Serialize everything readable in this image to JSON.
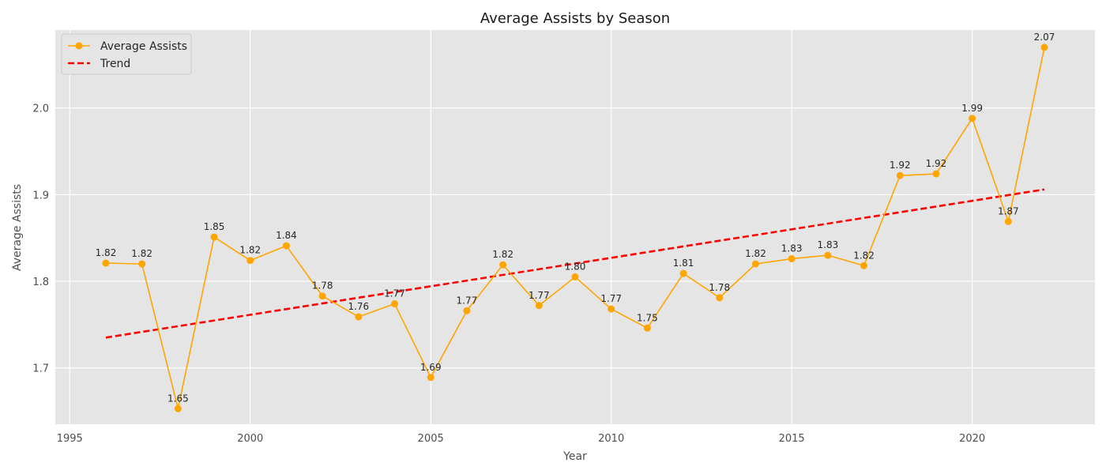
{
  "chart_data": {
    "type": "line",
    "title": "Average Assists by Season",
    "xlabel": "Year",
    "ylabel": "Average Assists",
    "xlim": [
      1994.6,
      2023.4
    ],
    "ylim": [
      1.635,
      2.09
    ],
    "xticks": [
      1995,
      2000,
      2005,
      2010,
      2015,
      2020
    ],
    "yticks": [
      1.7,
      1.8,
      1.9,
      2.0
    ],
    "ytick_labels": [
      "1.7",
      "1.8",
      "1.9",
      "2.0"
    ],
    "grid": true,
    "legend_position": "top-left",
    "series": [
      {
        "name": "Average Assists",
        "color": "#ffa500",
        "marker": "circle",
        "x": [
          1996,
          1997,
          1998,
          1999,
          2000,
          2001,
          2002,
          2003,
          2004,
          2005,
          2006,
          2007,
          2008,
          2009,
          2010,
          2011,
          2012,
          2013,
          2014,
          2015,
          2016,
          2017,
          2018,
          2019,
          2020,
          2021,
          2022
        ],
        "y": [
          1.821,
          1.82,
          1.653,
          1.851,
          1.824,
          1.841,
          1.783,
          1.759,
          1.774,
          1.689,
          1.766,
          1.819,
          1.772,
          1.805,
          1.768,
          1.746,
          1.809,
          1.781,
          1.82,
          1.826,
          1.83,
          1.818,
          1.922,
          1.924,
          1.988,
          1.869,
          2.07
        ],
        "labels": [
          "1.82",
          "1.82",
          "1.65",
          "1.85",
          "1.82",
          "1.84",
          "1.78",
          "1.76",
          "1.77",
          "1.69",
          "1.77",
          "1.82",
          "1.77",
          "1.80",
          "1.77",
          "1.75",
          "1.81",
          "1.78",
          "1.82",
          "1.83",
          "1.83",
          "1.82",
          "1.92",
          "1.92",
          "1.99",
          "1.87",
          "2.07"
        ]
      },
      {
        "name": "Trend",
        "color": "#ff0000",
        "style": "dashed",
        "x": [
          1996,
          2022
        ],
        "y": [
          1.735,
          1.906
        ]
      }
    ]
  }
}
